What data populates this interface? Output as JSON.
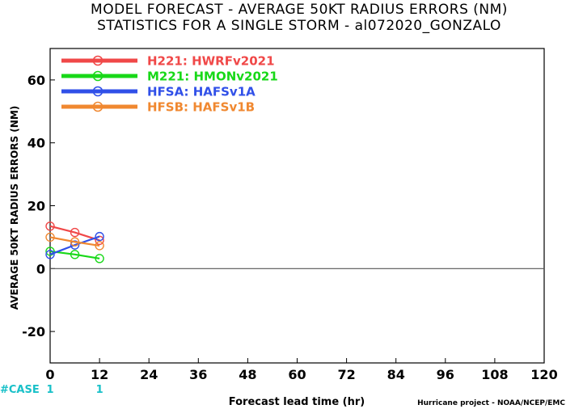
{
  "chart_data": {
    "type": "line",
    "title": "MODEL FORECAST - AVERAGE 50KT RADIUS ERRORS (NM)",
    "subtitle": "STATISTICS FOR A SINGLE STORM - al072020_GONZALO",
    "xlabel": "Forecast lead time (hr)",
    "ylabel": "AVERAGE 50KT RADIUS ERRORS (NM)",
    "xlim": [
      0,
      120
    ],
    "ylim": [
      -30,
      70
    ],
    "x_ticks": [
      "0",
      "12",
      "24",
      "36",
      "48",
      "60",
      "72",
      "84",
      "96",
      "108",
      "120"
    ],
    "y_ticks": [
      "-20",
      "0",
      "20",
      "40",
      "60"
    ],
    "grid": false,
    "legend_position": "top-left",
    "series": [
      {
        "name": "H221: HWRFv2021",
        "color": "#f04848",
        "x": [
          0,
          6,
          12
        ],
        "y": [
          13.5,
          11.5,
          9.0
        ]
      },
      {
        "name": "M221: HMONv2021",
        "color": "#18d818",
        "x": [
          0,
          6,
          12
        ],
        "y": [
          5.5,
          4.5,
          3.2
        ]
      },
      {
        "name": "HFSA: HAFSv1A",
        "color": "#3050e8",
        "x": [
          0,
          6,
          12
        ],
        "y": [
          4.5,
          7.5,
          10.2
        ]
      },
      {
        "name": "HFSB: HAFSv1B",
        "color": "#f08830",
        "x": [
          0,
          6,
          12
        ],
        "y": [
          10.0,
          8.5,
          7.3
        ]
      }
    ],
    "case_label": "#CASE",
    "case_counts": [
      {
        "x": 0,
        "n": "1"
      },
      {
        "x": 12,
        "n": "1"
      }
    ],
    "credit": "Hurricane project - NOAA/NCEP/EMC"
  }
}
